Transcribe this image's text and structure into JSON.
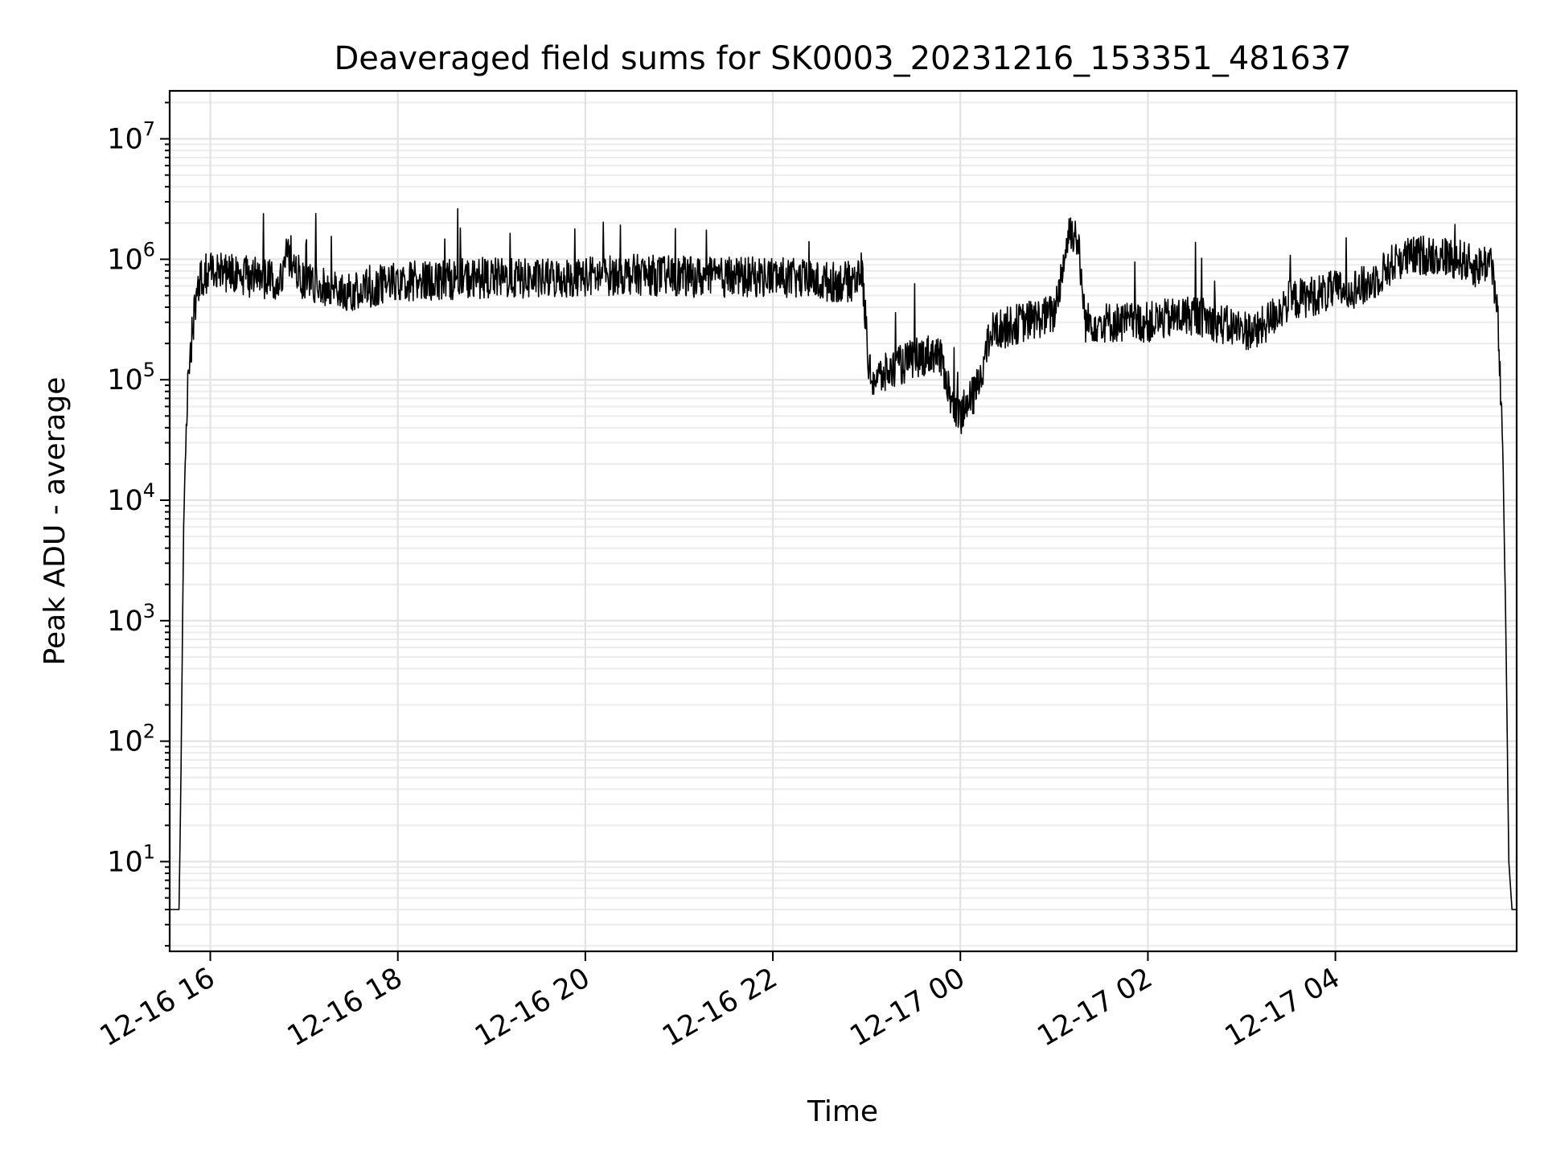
{
  "chart_data": {
    "type": "line",
    "title": "Deaveraged field sums for SK0003_20231216_153351_481637",
    "xlabel": "Time",
    "ylabel": "Peak ADU - average",
    "yscale": "log",
    "xlim": [
      "2023-12-16T15:34",
      "2023-12-17T05:56"
    ],
    "ylim": [
      1.8,
      25000000
    ],
    "grid": true,
    "line_color": "#000000",
    "x_tick_labels": [
      "12-16 16",
      "12-16 18",
      "12-16 20",
      "12-16 22",
      "12-17 00",
      "12-17 02",
      "12-17 04"
    ],
    "x_tick_values": [
      "2023-12-16T16:00",
      "2023-12-16T18:00",
      "2023-12-16T20:00",
      "2023-12-16T22:00",
      "2023-12-17T00:00",
      "2023-12-17T02:00",
      "2023-12-17T04:00"
    ],
    "y_tick_mantissa": [
      "10",
      "10",
      "10",
      "10",
      "10",
      "10",
      "10"
    ],
    "y_tick_exponent": [
      "1",
      "2",
      "3",
      "4",
      "5",
      "6",
      "7"
    ],
    "series": [
      {
        "x": [
          "2023-12-16T15:34",
          "2023-12-16T15:40",
          "2023-12-16T15:41",
          "2023-12-16T15:43",
          "2023-12-16T15:45",
          "2023-12-16T15:47",
          "2023-12-16T15:50",
          "2023-12-16T15:54",
          "2023-12-16T16:00",
          "2023-12-16T16:30",
          "2023-12-16T16:45",
          "2023-12-16T16:48",
          "2023-12-16T17:00",
          "2023-12-16T17:30",
          "2023-12-16T18:00",
          "2023-12-16T18:30",
          "2023-12-16T19:00",
          "2023-12-16T19:30",
          "2023-12-16T20:00",
          "2023-12-16T20:30",
          "2023-12-16T21:00",
          "2023-12-16T21:30",
          "2023-12-16T22:00",
          "2023-12-16T22:30",
          "2023-12-16T22:50",
          "2023-12-16T22:57",
          "2023-12-16T23:02",
          "2023-12-16T23:05",
          "2023-12-16T23:30",
          "2023-12-16T23:45",
          "2023-12-16T23:50",
          "2023-12-16T23:55",
          "2023-12-17T00:00",
          "2023-12-17T00:10",
          "2023-12-17T00:20",
          "2023-12-17T00:40",
          "2023-12-17T01:00",
          "2023-12-17T01:10",
          "2023-12-17T01:15",
          "2023-12-17T01:20",
          "2023-12-17T01:30",
          "2023-12-17T02:00",
          "2023-12-17T02:30",
          "2023-12-17T02:50",
          "2023-12-17T03:10",
          "2023-12-17T03:30",
          "2023-12-17T04:00",
          "2023-12-17T04:20",
          "2023-12-17T04:40",
          "2023-12-17T05:00",
          "2023-12-17T05:20",
          "2023-12-17T05:30",
          "2023-12-17T05:40",
          "2023-12-17T05:44",
          "2023-12-17T05:47",
          "2023-12-17T05:49",
          "2023-12-17T05:51",
          "2023-12-17T05:53",
          "2023-12-17T05:56"
        ],
        "y": [
          4,
          4,
          30,
          7000,
          60000,
          150000,
          400000,
          700000,
          800000,
          700000,
          650000,
          1100000,
          650000,
          550000,
          650000,
          680000,
          700000,
          680000,
          720000,
          750000,
          720000,
          700000,
          720000,
          650000,
          650000,
          800000,
          110000,
          100000,
          150000,
          170000,
          120000,
          60000,
          50000,
          80000,
          250000,
          300000,
          350000,
          1800000,
          1500000,
          300000,
          300000,
          300000,
          350000,
          280000,
          250000,
          450000,
          550000,
          600000,
          1000000,
          1100000,
          1000000,
          850000,
          1000000,
          300000,
          30000,
          1000,
          10,
          4,
          4
        ]
      }
    ]
  }
}
